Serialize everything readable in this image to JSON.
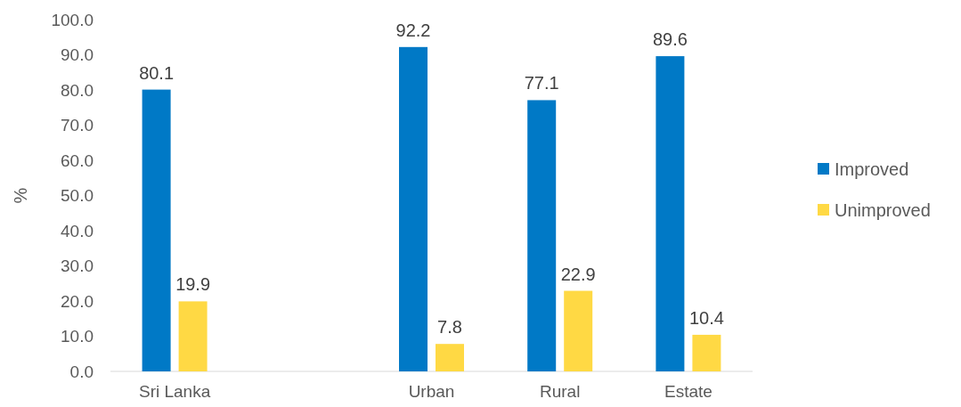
{
  "chart_data": {
    "type": "bar",
    "ylabel": "%",
    "categories": [
      "Sri Lanka",
      null,
      "Urban",
      "Rural",
      "Estate"
    ],
    "series": [
      {
        "name": "Improved",
        "color": "#0079c6",
        "values": [
          80.1,
          null,
          92.2,
          77.1,
          89.6
        ]
      },
      {
        "name": "Unimproved",
        "color": "#ffd944",
        "values": [
          19.9,
          null,
          7.8,
          22.9,
          10.4
        ]
      }
    ],
    "ylim": [
      0,
      100
    ],
    "yticks": [
      {
        "value": 0,
        "label": "0.0"
      },
      {
        "value": 10,
        "label": "10.0"
      },
      {
        "value": 20,
        "label": "20.0"
      },
      {
        "value": 30,
        "label": "30.0"
      },
      {
        "value": 40,
        "label": "40.0"
      },
      {
        "value": 50,
        "label": "50.0"
      },
      {
        "value": 60,
        "label": "60.0"
      },
      {
        "value": 70,
        "label": "70.0"
      },
      {
        "value": 80,
        "label": "80.0"
      },
      {
        "value": 90,
        "label": "90.0"
      },
      {
        "value": 100,
        "label": "100.0"
      }
    ],
    "data_labels": true,
    "legend": "right",
    "grid": false
  }
}
